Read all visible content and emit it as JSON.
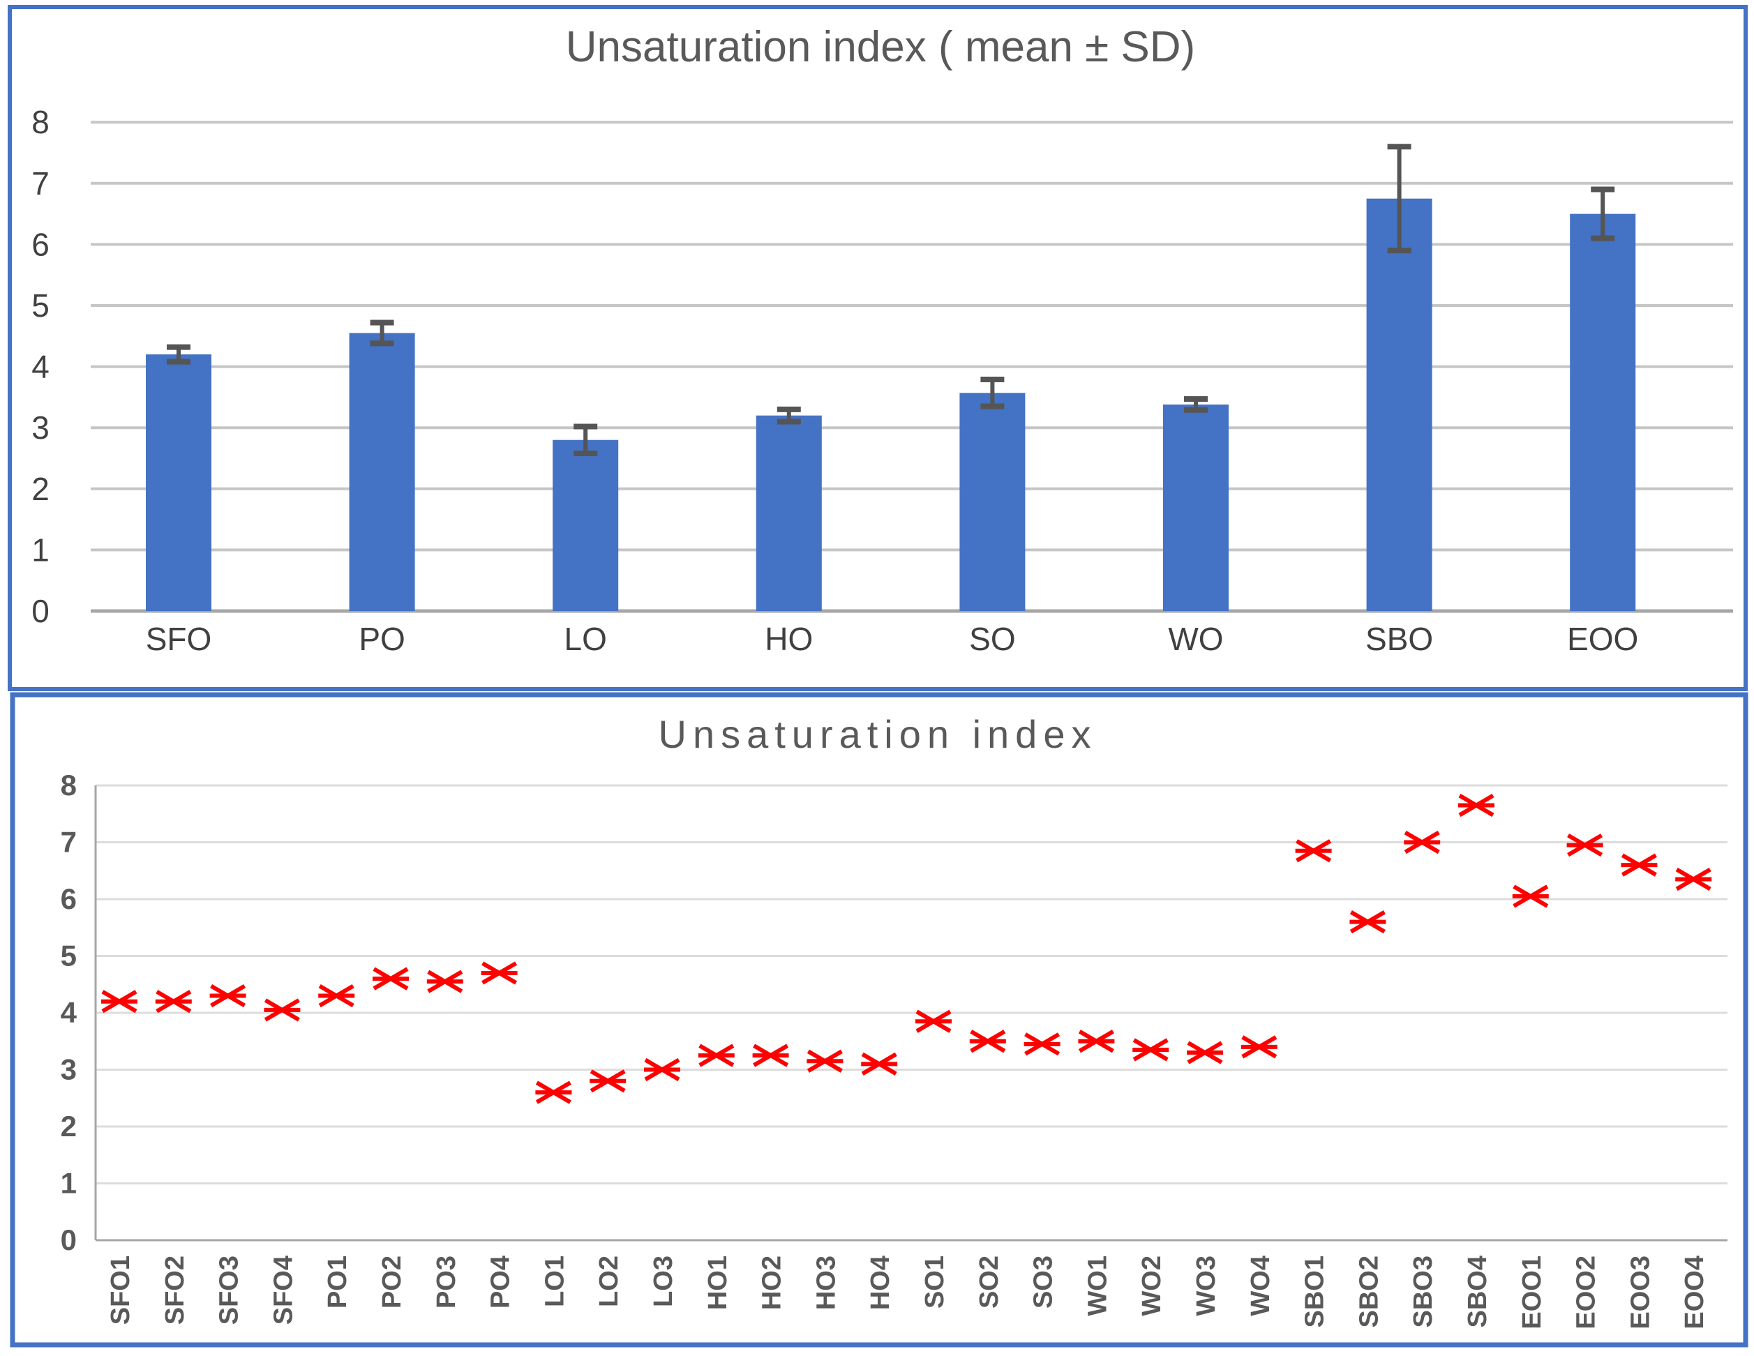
{
  "chart_data": [
    {
      "type": "bar",
      "title": "Unsaturation index ( mean ± SD)",
      "categories": [
        "SFO",
        "PO",
        "LO",
        "HO",
        "SO",
        "WO",
        "SBO",
        "EOO"
      ],
      "series": [
        {
          "name": "Unsaturation index mean",
          "values": [
            4.2,
            4.55,
            2.8,
            3.2,
            3.57,
            3.38,
            6.75,
            6.5
          ],
          "sd": [
            0.12,
            0.17,
            0.22,
            0.1,
            0.22,
            0.09,
            0.85,
            0.4
          ]
        }
      ],
      "xlabel": "",
      "ylabel": "",
      "ylim": [
        0,
        8
      ],
      "yticks": [
        0,
        1,
        2,
        3,
        4,
        5,
        6,
        7,
        8
      ],
      "grid": "horizontal",
      "legend": "none",
      "error_bars": "plus-minus-sd"
    },
    {
      "type": "scatter",
      "title": "Unsaturation index",
      "categories": [
        "SFO1",
        "SFO2",
        "SFO3",
        "SFO4",
        "PO1",
        "PO2",
        "PO3",
        "PO4",
        "LO1",
        "LO2",
        "LO3",
        "HO1",
        "HO2",
        "HO3",
        "HO4",
        "SO1",
        "SO2",
        "SO3",
        "WO1",
        "WO2",
        "WO3",
        "WO4",
        "SBO1",
        "SBO2",
        "SBO3",
        "SBO4",
        "EOO1",
        "EOO2",
        "EOO3",
        "EOO4"
      ],
      "values": [
        4.2,
        4.2,
        4.3,
        4.05,
        4.3,
        4.6,
        4.55,
        4.7,
        2.6,
        2.8,
        3.0,
        3.25,
        3.25,
        3.15,
        3.1,
        3.85,
        3.5,
        3.45,
        3.5,
        3.35,
        3.3,
        3.4,
        6.85,
        5.6,
        7.0,
        7.65,
        6.05,
        6.95,
        6.6,
        6.35
      ],
      "xlabel": "",
      "ylabel": "",
      "ylim": [
        0,
        8
      ],
      "yticks": [
        0,
        1,
        2,
        3,
        4,
        5,
        6,
        7,
        8
      ],
      "grid": "horizontal",
      "legend": "none",
      "marker": "red-asterisk",
      "x_tick_rotation": 90
    }
  ],
  "style": {
    "bar_color": "#4472C4",
    "error_bar_color": "#555555",
    "marker_color": "#FE0000",
    "panel_border_color": "#4472C4",
    "title_color": "#595959",
    "axis_text_color_top": "#404040",
    "axis_text_color_bottom": "#595959",
    "grid_color_top": "#C6C6C6",
    "grid_color_bottom": "#DCDCDC",
    "axis_line_color": "#A6A6A6",
    "background": "#FFFFFF"
  }
}
